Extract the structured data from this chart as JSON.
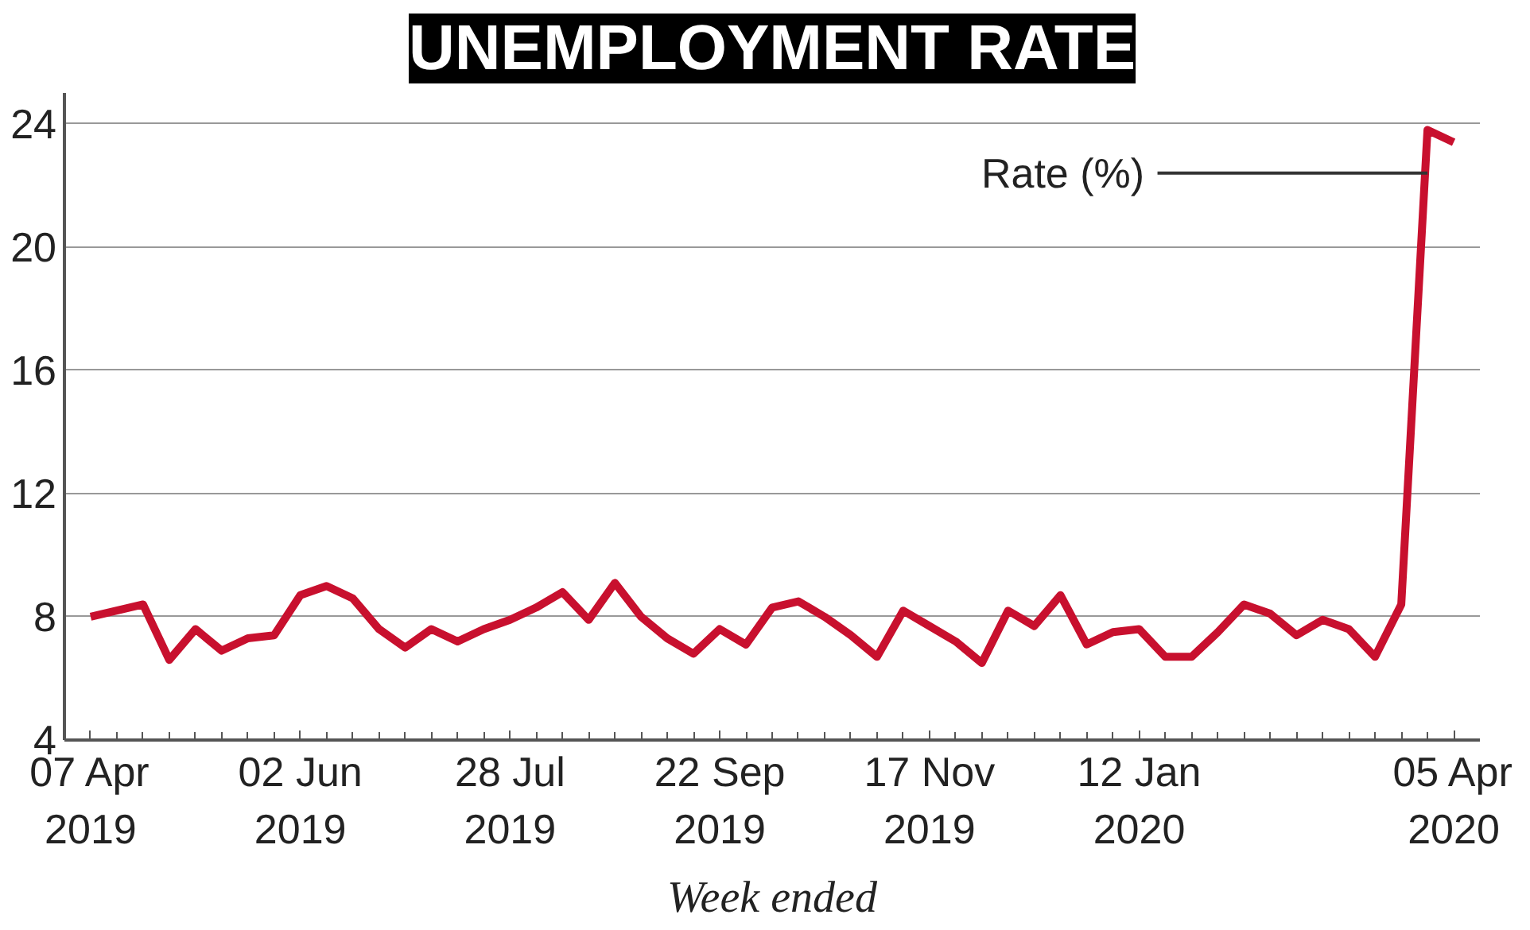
{
  "chart_data": {
    "type": "line",
    "title": "UNEMPLOYMENT RATE",
    "xlabel": "Week ended",
    "x": [
      "2019-04-07",
      "2019-04-14",
      "2019-04-21",
      "2019-04-28",
      "2019-05-05",
      "2019-05-12",
      "2019-05-19",
      "2019-05-26",
      "2019-06-02",
      "2019-06-09",
      "2019-06-16",
      "2019-06-23",
      "2019-06-30",
      "2019-07-07",
      "2019-07-14",
      "2019-07-21",
      "2019-07-28",
      "2019-08-04",
      "2019-08-11",
      "2019-08-18",
      "2019-08-25",
      "2019-09-01",
      "2019-09-08",
      "2019-09-15",
      "2019-09-22",
      "2019-09-29",
      "2019-10-06",
      "2019-10-13",
      "2019-10-20",
      "2019-10-27",
      "2019-11-03",
      "2019-11-10",
      "2019-11-17",
      "2019-11-24",
      "2019-12-01",
      "2019-12-08",
      "2019-12-15",
      "2019-12-22",
      "2019-12-29",
      "2020-01-05",
      "2020-01-12",
      "2020-01-19",
      "2020-01-26",
      "2020-02-02",
      "2020-02-09",
      "2020-02-16",
      "2020-02-23",
      "2020-03-01",
      "2020-03-08",
      "2020-03-15",
      "2020-03-22",
      "2020-03-29",
      "2020-04-05"
    ],
    "series": [
      {
        "name": "Rate (%)",
        "color": "#c8102e",
        "values": [
          8.0,
          8.2,
          8.4,
          6.6,
          7.6,
          6.9,
          7.3,
          7.4,
          8.7,
          9.0,
          8.6,
          7.6,
          7.0,
          7.6,
          7.2,
          7.6,
          7.9,
          8.3,
          8.8,
          7.9,
          9.1,
          8.0,
          7.3,
          6.8,
          7.6,
          7.1,
          8.3,
          8.5,
          8.0,
          7.4,
          6.7,
          8.2,
          7.7,
          7.2,
          6.5,
          8.2,
          7.7,
          8.7,
          7.1,
          7.5,
          7.6,
          6.7,
          6.7,
          7.5,
          8.4,
          8.1,
          7.4,
          7.9,
          7.6,
          6.7,
          8.4,
          23.8,
          23.4
        ]
      }
    ],
    "xlim": [
      "2019-03-31",
      "2020-04-12"
    ],
    "xticks": [
      {
        "value": "2019-04-07",
        "label": "07 Apr\n2019"
      },
      {
        "value": "2019-06-02",
        "label": "02 Jun\n2019"
      },
      {
        "value": "2019-07-28",
        "label": "28 Jul\n2019"
      },
      {
        "value": "2019-09-22",
        "label": "22 Sep\n2019"
      },
      {
        "value": "2019-11-17",
        "label": "17 Nov\n2019"
      },
      {
        "value": "2020-01-12",
        "label": "12 Jan\n2020"
      },
      {
        "value": "2020-04-05",
        "label": "05 Apr\n2020"
      }
    ],
    "ylim": [
      4,
      25
    ],
    "yticks": [
      4,
      8,
      12,
      16,
      20,
      24
    ],
    "grid": "y",
    "marker": "none",
    "line_style": "solid"
  }
}
